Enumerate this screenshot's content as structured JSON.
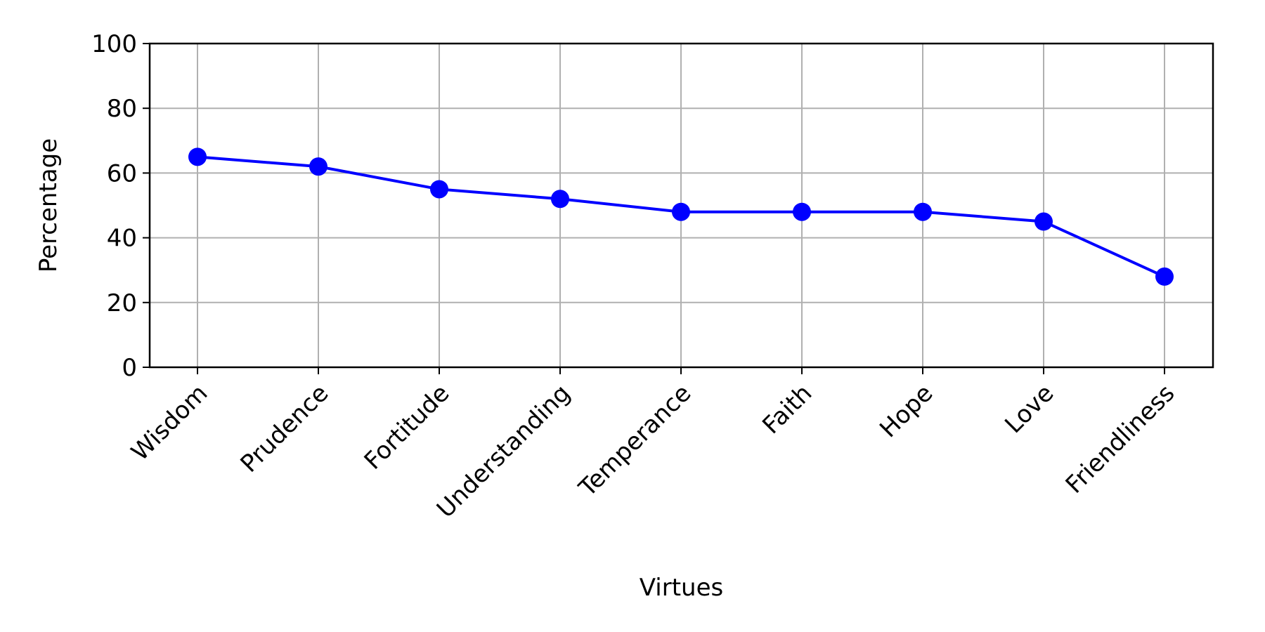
{
  "chart_data": {
    "type": "line",
    "title": "",
    "xlabel": "Virtues",
    "ylabel": "Percentage",
    "categories": [
      "Wisdom",
      "Prudence",
      "Fortitude",
      "Understanding",
      "Temperance",
      "Faith",
      "Hope",
      "Love",
      "Friendliness"
    ],
    "series": [
      {
        "values": [
          65,
          62,
          55,
          52,
          48,
          48,
          48,
          45,
          28
        ],
        "color": "#0000ff",
        "marker": "circle"
      }
    ],
    "ylim": [
      0,
      100
    ],
    "yticks": [
      "0",
      "20",
      "40",
      "60",
      "80",
      "100"
    ],
    "grid": true,
    "legend": "none"
  }
}
